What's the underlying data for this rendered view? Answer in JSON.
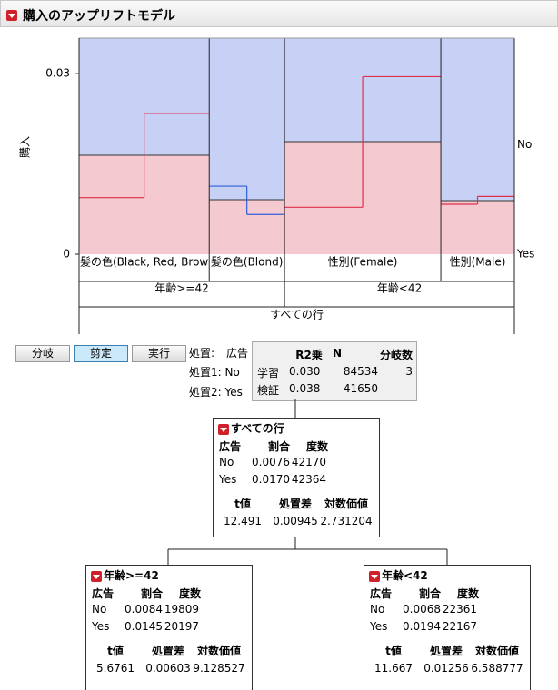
{
  "header": {
    "title": "購入のアップリフトモデル"
  },
  "chart_data": {
    "type": "uplift",
    "y_axis_label": "購入",
    "ylim": [
      0,
      0.0359
    ],
    "yticks": [
      0,
      0.03
    ],
    "xlim": [
      0,
      1
    ],
    "x_edges": [
      0,
      0.299,
      0.472,
      0.831,
      1
    ],
    "right_labels": [
      "No",
      "Yes"
    ],
    "fill_colors": {
      "No": "#c7d0f5",
      "Yes": "#f5c9d0"
    },
    "segments": [
      {
        "label": "髪の色(Black, Red, Brow",
        "yes_share": 0.458,
        "color": "#e0304c",
        "values": [
          0.0094,
          0.0234
        ]
      },
      {
        "label": "髪の色(Blond)",
        "yes_share": 0.252,
        "color": "#2f5fd8",
        "values": [
          0.0113,
          0.0066
        ]
      },
      {
        "label": "性別(Female)",
        "yes_share": 0.521,
        "color": "#e0304c",
        "values": [
          0.0078,
          0.0295
        ]
      },
      {
        "label": "性別(Male)",
        "yes_share": 0.248,
        "color": "#e0304c",
        "values": [
          0.0083,
          0.0096
        ]
      }
    ],
    "groups": [
      "年齢>=42",
      "年齢<42"
    ],
    "root_label": "すべての行"
  },
  "buttons": [
    "分岐",
    "剪定",
    "実行"
  ],
  "treatment": {
    "label": "処置:",
    "name": "広告",
    "t1": "処置1: No",
    "t2": "処置2: Yes"
  },
  "summary": {
    "columns": [
      "R2乗",
      "N",
      "分岐数"
    ],
    "rows": [
      {
        "label": "学習",
        "r2": "0.030",
        "n": "84534",
        "splits": "3"
      },
      {
        "label": "検証",
        "r2": "0.038",
        "n": "41650"
      }
    ]
  },
  "nodes": [
    {
      "title": "すべての行",
      "columns": [
        "広告",
        "割合",
        "度数"
      ],
      "rows": [
        [
          "No",
          "0.0076",
          "42170"
        ],
        [
          "Yes",
          "0.0170",
          "42364"
        ]
      ],
      "stat_columns": [
        "t値",
        "処置差",
        "対数価値"
      ],
      "stats": [
        "12.491",
        "0.00945",
        "2.731204"
      ]
    },
    {
      "title": "年齢>=42",
      "columns": [
        "広告",
        "割合",
        "度数"
      ],
      "rows": [
        [
          "No",
          "0.0084",
          "19809"
        ],
        [
          "Yes",
          "0.0145",
          "20197"
        ]
      ],
      "stat_columns": [
        "t値",
        "処置差",
        "対数価値"
      ],
      "stats": [
        "5.6761",
        "0.00603",
        "9.128527"
      ]
    },
    {
      "title": "年齢<42",
      "columns": [
        "広告",
        "割合",
        "度数"
      ],
      "rows": [
        [
          "No",
          "0.0068",
          "22361"
        ],
        [
          "Yes",
          "0.0194",
          "22167"
        ]
      ],
      "stat_columns": [
        "t値",
        "処置差",
        "対数価値"
      ],
      "stats": [
        "11.667",
        "0.01256",
        "6.588777"
      ]
    }
  ]
}
